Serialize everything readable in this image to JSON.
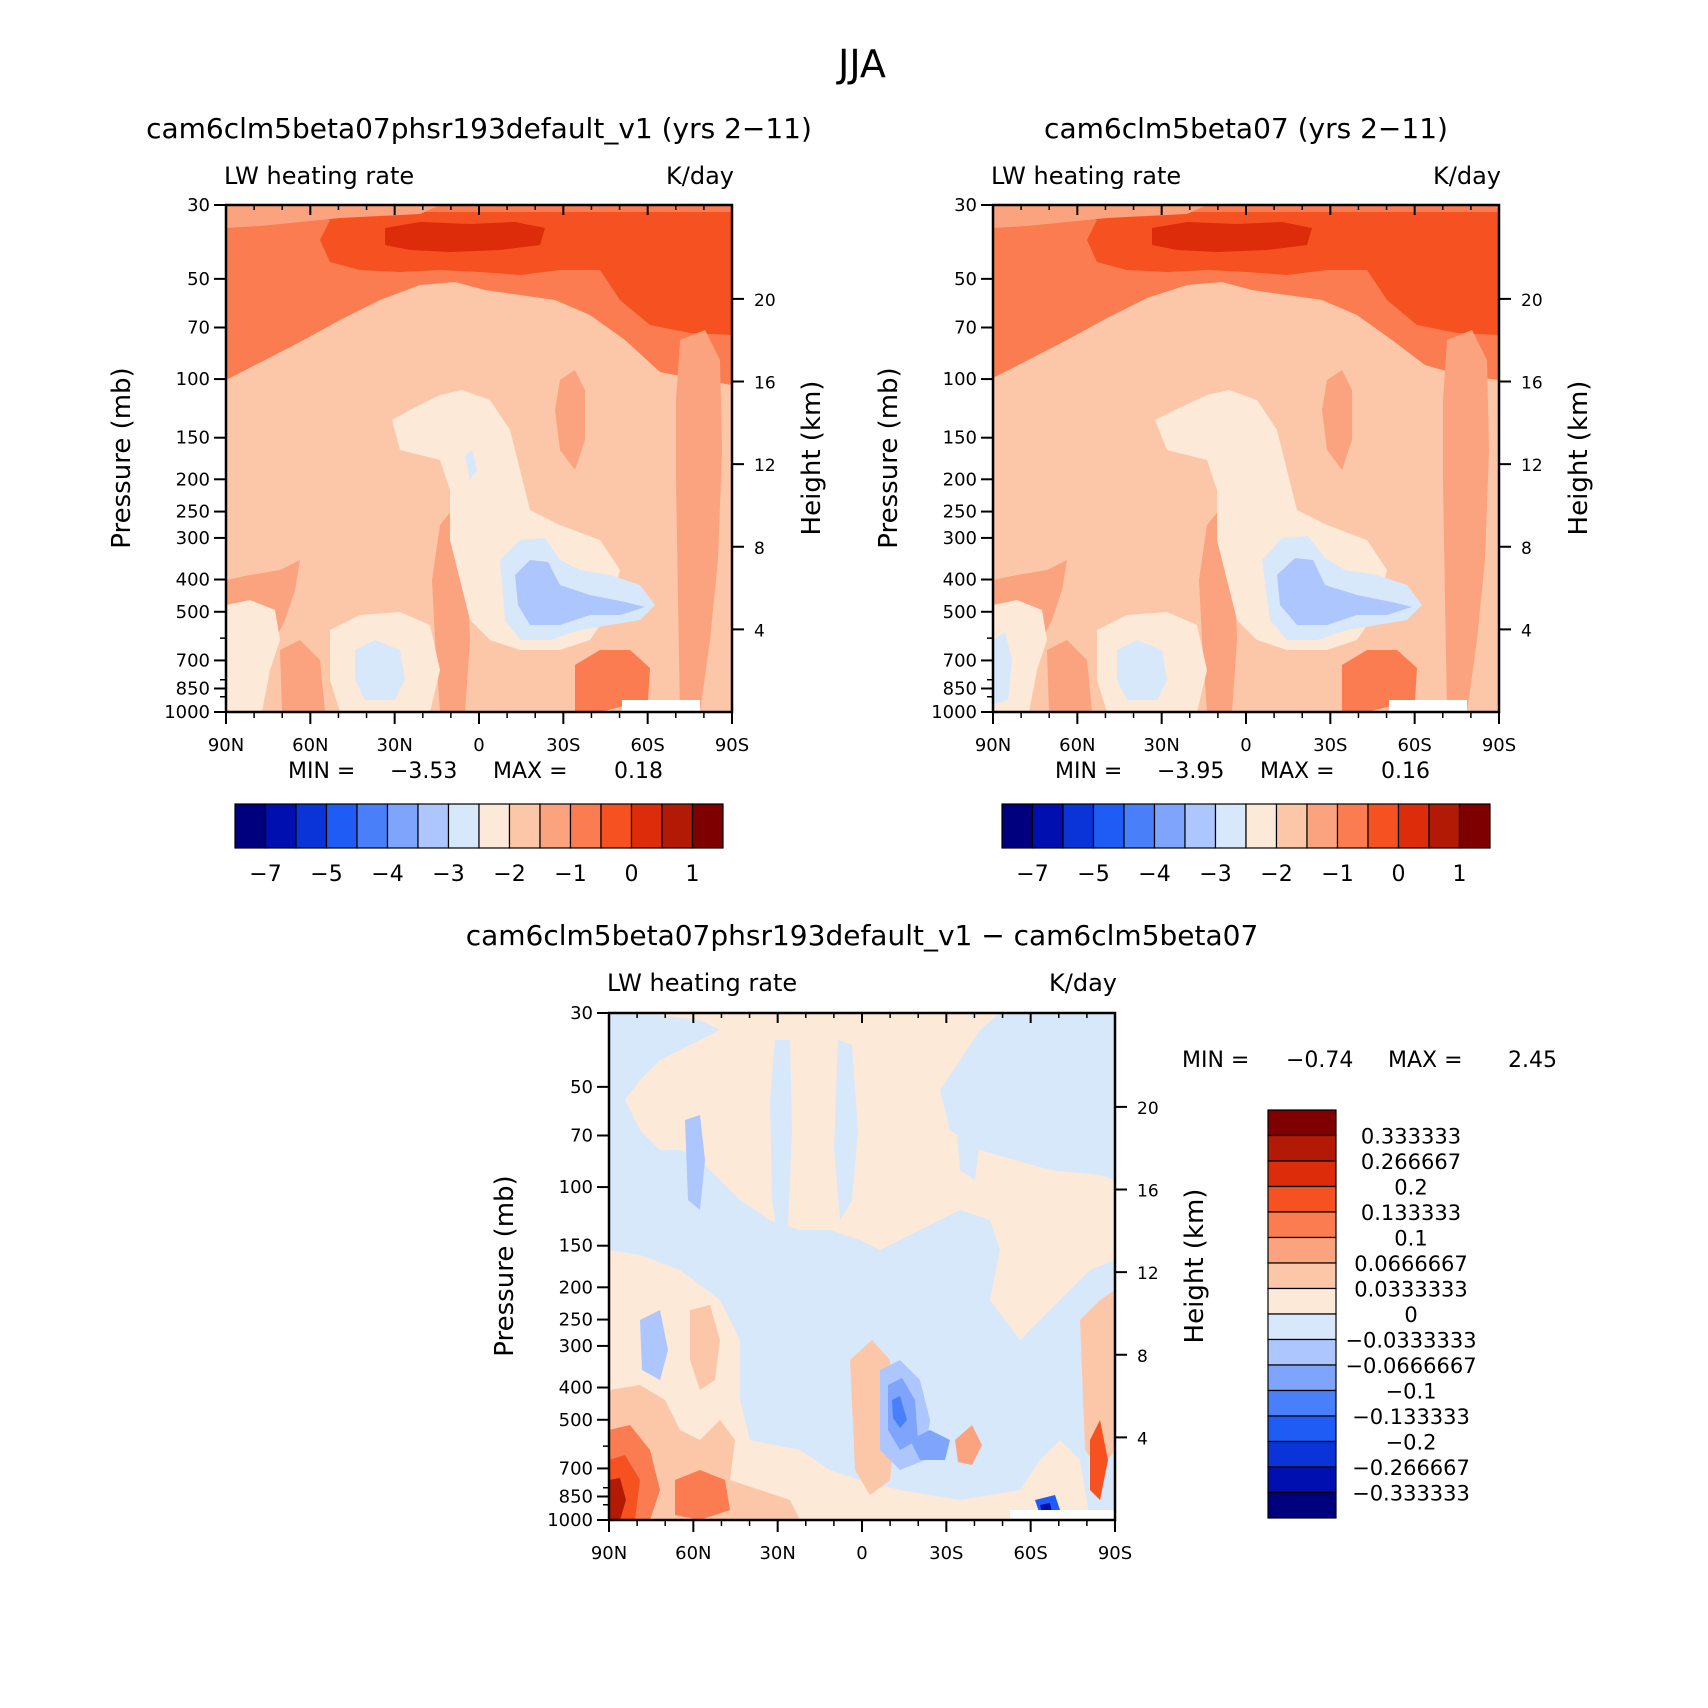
{
  "figure_title": "JJA",
  "colorbar_colors": [
    "#00007e",
    "#0010b0",
    "#0a34d8",
    "#1e5cf5",
    "#4a7ffa",
    "#7ea5fb",
    "#adc6fd",
    "#d8e8fb",
    "#fde9d8",
    "#fcc7a8",
    "#fba37f",
    "#fa7c50",
    "#f65121",
    "#dc2c0a",
    "#b31a06",
    "#7e0000"
  ],
  "chart_data": [
    {
      "type": "heatmap",
      "panel_title": "cam6clm5beta07phsr193default_v1 (yrs 2−11)",
      "subtitle_left": "LW heating rate",
      "subtitle_right": "K/day",
      "ylabel": "Pressure (mb)",
      "ylabel_right": "Height (km)",
      "x_ticks": [
        "90N",
        "60N",
        "30N",
        "0",
        "30S",
        "60S",
        "90S"
      ],
      "y_ticks": [
        "30",
        "50",
        "70",
        "100",
        "150",
        "200",
        "250",
        "300",
        "400",
        "500",
        "700",
        "850",
        "1000"
      ],
      "y_right_ticks": [
        "20",
        "16",
        "12",
        "8",
        "4"
      ],
      "min_label": "MIN =",
      "min_value": "−3.53",
      "max_label": "MAX =",
      "max_value": "0.18",
      "colorbar_labels": [
        "−7",
        "−5",
        "−4",
        "−3",
        "−2",
        "−1",
        "0",
        "1"
      ]
    },
    {
      "type": "heatmap",
      "panel_title": "cam6clm5beta07 (yrs 2−11)",
      "subtitle_left": "LW heating rate",
      "subtitle_right": "K/day",
      "ylabel": "Pressure (mb)",
      "ylabel_right": "Height (km)",
      "x_ticks": [
        "90N",
        "60N",
        "30N",
        "0",
        "30S",
        "60S",
        "90S"
      ],
      "y_ticks": [
        "30",
        "50",
        "70",
        "100",
        "150",
        "200",
        "250",
        "300",
        "400",
        "500",
        "700",
        "850",
        "1000"
      ],
      "y_right_ticks": [
        "20",
        "16",
        "12",
        "8",
        "4"
      ],
      "min_label": "MIN =",
      "min_value": "−3.95",
      "max_label": "MAX =",
      "max_value": "0.16",
      "colorbar_labels": [
        "−7",
        "−5",
        "−4",
        "−3",
        "−2",
        "−1",
        "0",
        "1"
      ]
    },
    {
      "type": "heatmap",
      "panel_title": "cam6clm5beta07phsr193default_v1 − cam6clm5beta07",
      "subtitle_left": "LW heating rate",
      "subtitle_right": "K/day",
      "ylabel": "Pressure (mb)",
      "ylabel_right": "Height (km)",
      "x_ticks": [
        "90N",
        "60N",
        "30N",
        "0",
        "30S",
        "60S",
        "90S"
      ],
      "y_ticks": [
        "30",
        "50",
        "70",
        "100",
        "150",
        "200",
        "250",
        "300",
        "400",
        "500",
        "700",
        "850",
        "1000"
      ],
      "y_right_ticks": [
        "20",
        "16",
        "12",
        "8",
        "4"
      ],
      "min_label": "MIN =",
      "min_value": "−0.74",
      "max_label": "MAX =",
      "max_value": "2.45",
      "colorbar_labels": [
        "0.333333",
        "0.266667",
        "0.2",
        "0.133333",
        "0.1",
        "0.0666667",
        "0.0333333",
        "0",
        "−0.0333333",
        "−0.0666667",
        "−0.1",
        "−0.133333",
        "−0.2",
        "−0.266667",
        "−0.333333"
      ]
    }
  ]
}
